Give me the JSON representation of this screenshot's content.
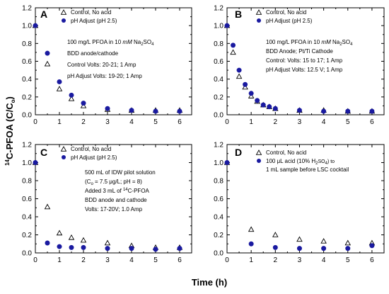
{
  "chart_data": [
    {
      "type": "scatter",
      "panel": "A",
      "xlim": [
        0,
        6.5
      ],
      "ylim": [
        0,
        1.2
      ],
      "xticks": [
        "0",
        "1",
        "2",
        "3",
        "4",
        "5",
        "6"
      ],
      "yticks": [
        "0.0",
        "0.2",
        "0.4",
        "0.6",
        "0.8",
        "1.0",
        "1.2"
      ],
      "series": [
        {
          "name": "Control, No acid",
          "marker": "triangle",
          "x": [
            0,
            0.5,
            1,
            1.5,
            2,
            3,
            4,
            5,
            6
          ],
          "y": [
            1.0,
            0.57,
            0.29,
            0.18,
            0.1,
            0.06,
            0.05,
            0.05,
            0.05
          ]
        },
        {
          "name": "pH Adjust (pH 2.5)",
          "marker": "circle",
          "x": [
            0,
            0.5,
            1,
            1.5,
            2,
            3,
            4,
            5,
            6
          ],
          "y": [
            1.0,
            0.69,
            0.37,
            0.22,
            0.13,
            0.07,
            0.05,
            0.04,
            0.04
          ]
        }
      ],
      "annotations": [
        "100 mg/L PFOA in 10 mM Na2SO4",
        "BDD anode/cathode",
        "Control Volts: 20-21; 1 Amp",
        "pH Adjust Volts: 19-20; 1 Amp"
      ]
    },
    {
      "type": "scatter",
      "panel": "B",
      "xlim": [
        0,
        6.5
      ],
      "ylim": [
        0,
        1.2
      ],
      "xticks": [
        "0",
        "1",
        "2",
        "3",
        "4",
        "5",
        "6"
      ],
      "yticks": [
        "0.0",
        "0.2",
        "0.4",
        "0.6",
        "0.8",
        "1.0",
        "1.2"
      ],
      "series": [
        {
          "name": "Control, No acid",
          "marker": "triangle",
          "x": [
            0,
            0.25,
            0.5,
            0.75,
            1,
            1.25,
            1.5,
            1.75,
            2,
            3,
            4,
            5,
            6
          ],
          "y": [
            1.0,
            0.7,
            0.43,
            0.31,
            0.21,
            0.15,
            0.11,
            0.09,
            0.07,
            0.05,
            0.05,
            0.04,
            0.04
          ]
        },
        {
          "name": "pH Adjust (pH 2.5)",
          "marker": "circle",
          "x": [
            0,
            0.25,
            0.5,
            0.75,
            1,
            1.25,
            1.5,
            1.75,
            2,
            3,
            4,
            5,
            6
          ],
          "y": [
            1.0,
            0.78,
            0.5,
            0.34,
            0.24,
            0.16,
            0.11,
            0.09,
            0.07,
            0.05,
            0.04,
            0.04,
            0.04
          ]
        }
      ],
      "annotations": [
        "100 mg/L PFOA in 10 mM Na2SO4",
        "BDD Anode; Pt/Ti Cathode",
        "Control: Volts: 15 to 17; 1 Amp",
        "pH Adjust Volts: 12.5 V; 1 Amp"
      ]
    },
    {
      "type": "scatter",
      "panel": "C",
      "xlim": [
        0,
        6.5
      ],
      "ylim": [
        0,
        1.2
      ],
      "xticks": [
        "0",
        "1",
        "2",
        "3",
        "4",
        "5",
        "6"
      ],
      "yticks": [
        "0.0",
        "0.2",
        "0.4",
        "0.6",
        "0.8",
        "1.0",
        "1.2"
      ],
      "series": [
        {
          "name": "Control, No acid",
          "marker": "triangle",
          "x": [
            0,
            0.5,
            1,
            1.5,
            2,
            3,
            4,
            5,
            6
          ],
          "y": [
            1.0,
            0.51,
            0.22,
            0.17,
            0.14,
            0.11,
            0.08,
            0.06,
            0.06
          ]
        },
        {
          "name": "pH Adjust (pH 2.5)",
          "marker": "circle",
          "x": [
            0,
            0.5,
            1,
            1.5,
            2,
            3,
            4,
            5,
            6
          ],
          "y": [
            1.0,
            0.11,
            0.07,
            0.06,
            0.06,
            0.05,
            0.05,
            0.04,
            0.05
          ]
        }
      ],
      "annotations": [
        "500 mL of IDW pilot solution",
        "(Co = 7.5 μg/L; pH = 8)",
        "Added 3 mL of 14C-PFOA",
        "BDD anode and cathode",
        "Volts: 17-20V; 1.0 Amp"
      ]
    },
    {
      "type": "scatter",
      "panel": "D",
      "xlim": [
        0,
        6.5
      ],
      "ylim": [
        0,
        1.2
      ],
      "xticks": [
        "0",
        "1",
        "2",
        "3",
        "4",
        "5",
        "6"
      ],
      "yticks": [
        "0.0",
        "0.2",
        "0.4",
        "0.6",
        "0.8",
        "1.0",
        "1.2"
      ],
      "series": [
        {
          "name": "Control, No acid",
          "marker": "triangle",
          "x": [
            0,
            1,
            2,
            3,
            4,
            5,
            6
          ],
          "y": [
            1.0,
            0.26,
            0.2,
            0.15,
            0.13,
            0.11,
            0.11
          ]
        },
        {
          "name": "100 μL acid (10% H2SO4) to 1 mL sample before LSC cocktail",
          "marker": "circle",
          "x": [
            0,
            1,
            2,
            3,
            4,
            5,
            6
          ],
          "y": [
            1.0,
            0.1,
            0.06,
            0.05,
            0.05,
            0.05,
            0.08
          ]
        }
      ],
      "annotations": []
    }
  ],
  "labels": {
    "ylabel_sup": "14",
    "ylabel_main": "C-PFOA (C/C",
    "ylabel_sub": "o",
    "ylabel_end": ")",
    "xlabel": "Time (h)"
  }
}
